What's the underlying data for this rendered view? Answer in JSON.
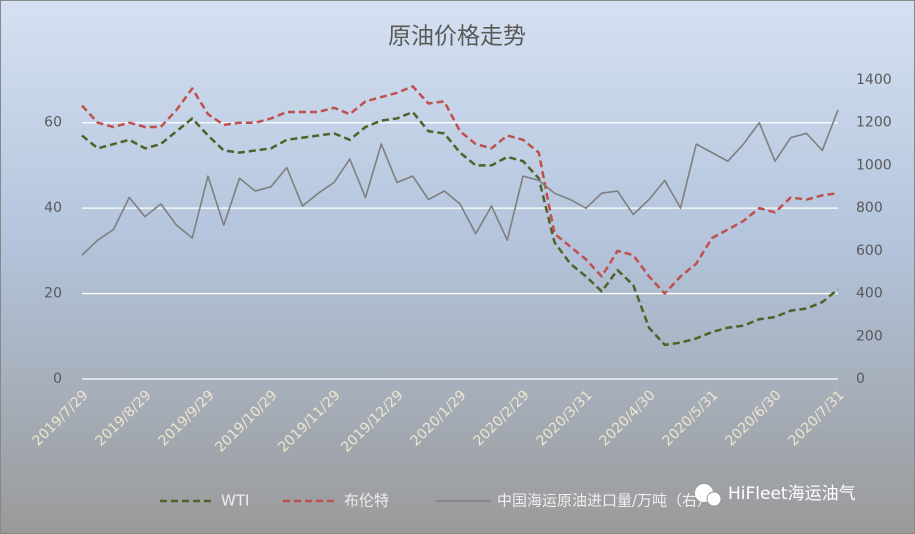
{
  "chart_data": {
    "type": "line",
    "title": "原油价格走势",
    "categories": [
      "2019/7/29",
      null,
      null,
      null,
      "2019/8/29",
      null,
      null,
      null,
      "2019/9/29",
      null,
      null,
      null,
      "2019/10/29",
      null,
      null,
      null,
      "2019/11/29",
      null,
      null,
      null,
      "2019/12/29",
      null,
      null,
      null,
      "2020/1/29",
      null,
      null,
      null,
      "2020/2/29",
      null,
      null,
      null,
      "2020/3/31",
      null,
      null,
      null,
      "2020/4/30",
      null,
      null,
      null,
      "2020/5/31",
      null,
      null,
      null,
      "2020/6/30",
      null,
      null,
      null,
      "2020/7/31"
    ],
    "series": [
      {
        "name": "WTI",
        "color": "#4f6228",
        "dash": true,
        "values": [
          57,
          54,
          55,
          56,
          54,
          55,
          58,
          61,
          57,
          53.5,
          53,
          53.5,
          54,
          56,
          56.5,
          57,
          57.5,
          56,
          59,
          60.5,
          61,
          62.5,
          58,
          57.5,
          53,
          50,
          50,
          52,
          51,
          47,
          32,
          27,
          24,
          20.5,
          25.5,
          22,
          12,
          8,
          8.5,
          9.5,
          11,
          12,
          12.5,
          14,
          14.5,
          16,
          16.5,
          18,
          21
        ]
      },
      {
        "name": "布伦特",
        "color": "#c0504d",
        "dash": true,
        "values": [
          64,
          60,
          59,
          60,
          59,
          59,
          63,
          68,
          62,
          59.5,
          60,
          60,
          61,
          62.5,
          62.5,
          62.5,
          63.5,
          62,
          65,
          66,
          67,
          68.5,
          64.5,
          65,
          58,
          55,
          54,
          57,
          56,
          53,
          34,
          31,
          28,
          24,
          30,
          29,
          24,
          20,
          24,
          27,
          33,
          35,
          37,
          40,
          39,
          42.5,
          42,
          43,
          43.5
        ]
      },
      {
        "name": "中国海运原油进口量/万吨（右）",
        "color": "#7f7f7f",
        "dash": false,
        "axis": "y2",
        "values": [
          580,
          650,
          700,
          850,
          760,
          820,
          720,
          660,
          950,
          720,
          940,
          880,
          900,
          990,
          810,
          870,
          920,
          1030,
          850,
          1100,
          920,
          950,
          840,
          880,
          820,
          680,
          810,
          650,
          950,
          930,
          870,
          840,
          800,
          870,
          880,
          770,
          840,
          930,
          800,
          1100,
          1060,
          1020,
          1100,
          1200,
          1020,
          1130,
          1150,
          1070,
          1260
        ]
      }
    ],
    "ylim": [
      0,
      70
    ],
    "yticks": [
      0,
      20,
      40,
      60
    ],
    "y2lim": [
      0,
      1400
    ],
    "y2ticks": [
      0,
      200,
      400,
      600,
      800,
      1000,
      1200,
      1400
    ],
    "grid": true,
    "legend": "bottom"
  },
  "watermark": "HiFleet海运油气"
}
